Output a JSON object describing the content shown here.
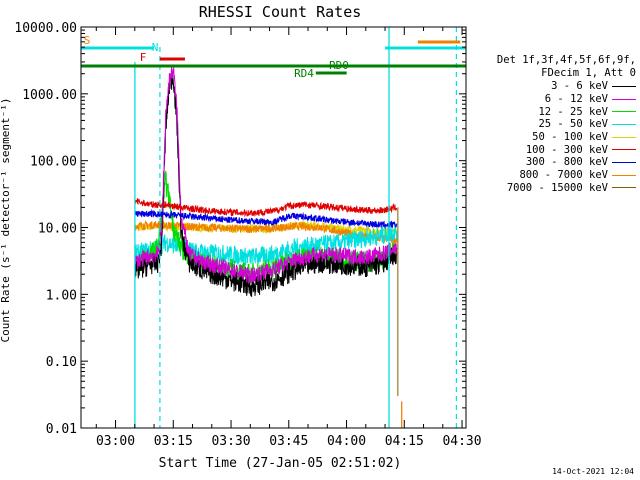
{
  "chart_data": {
    "type": "line",
    "title": "RHESSI Count Rates",
    "xlabel": "Start Time (27-Jan-05 02:51:02)",
    "ylabel": "Count Rate (s⁻¹ detector⁻¹ segment⁻¹)",
    "yscale": "log",
    "ylim": [
      0.01,
      10000
    ],
    "xlim_minutes": [
      0,
      100
    ],
    "y_ticks": [
      "0.01",
      "0.10",
      "1.00",
      "10.00",
      "100.00",
      "1000.00",
      "10000.00"
    ],
    "x_ticks": [
      {
        "label": "03:00",
        "min": 8.97
      },
      {
        "label": "03:15",
        "min": 23.97
      },
      {
        "label": "03:30",
        "min": 38.97
      },
      {
        "label": "03:45",
        "min": 53.97
      },
      {
        "label": "04:00",
        "min": 68.97
      },
      {
        "label": "04:15",
        "min": 83.97
      },
      {
        "label": "04:30",
        "min": 98.97
      }
    ],
    "data_range_minutes": [
      14,
      82
    ],
    "legend": {
      "header": [
        "Det 1f,3f,4f,5f,6f,9f,",
        "FDecim 1, Att 0"
      ],
      "placement": "right"
    },
    "series": [
      {
        "name": "3 - 6 keV",
        "color": "#000000",
        "points": [
          [
            14,
            2.2
          ],
          [
            18,
            2.8
          ],
          [
            20,
            3
          ],
          [
            21,
            6
          ],
          [
            22,
            300
          ],
          [
            23,
            1400
          ],
          [
            24,
            1900
          ],
          [
            25,
            300
          ],
          [
            26,
            8
          ],
          [
            28,
            3
          ],
          [
            32,
            2.2
          ],
          [
            38,
            1.7
          ],
          [
            44,
            1.3
          ],
          [
            50,
            1.6
          ],
          [
            56,
            2.4
          ],
          [
            62,
            3
          ],
          [
            68,
            2.8
          ],
          [
            74,
            2.6
          ],
          [
            78,
            2.8
          ],
          [
            82,
            4
          ]
        ]
      },
      {
        "name": "6 - 12 keV",
        "color": "#d400d4",
        "points": [
          [
            14,
            3
          ],
          [
            18,
            3.8
          ],
          [
            20,
            4
          ],
          [
            21,
            10
          ],
          [
            22,
            500
          ],
          [
            23,
            1700
          ],
          [
            24,
            2300
          ],
          [
            25,
            500
          ],
          [
            26,
            15
          ],
          [
            28,
            4
          ],
          [
            32,
            3
          ],
          [
            38,
            2.4
          ],
          [
            44,
            1.9
          ],
          [
            50,
            2.4
          ],
          [
            56,
            3.4
          ],
          [
            62,
            4
          ],
          [
            68,
            3.8
          ],
          [
            74,
            3.6
          ],
          [
            78,
            4
          ],
          [
            82,
            5
          ]
        ]
      },
      {
        "name": "12 - 25 keV",
        "color": "#00dd00",
        "points": [
          [
            14,
            3
          ],
          [
            18,
            4
          ],
          [
            20,
            5
          ],
          [
            21,
            15
          ],
          [
            22,
            50
          ],
          [
            23,
            25
          ],
          [
            24,
            10
          ],
          [
            26,
            5
          ],
          [
            30,
            3
          ],
          [
            38,
            2.4
          ],
          [
            44,
            2
          ],
          [
            50,
            2.5
          ],
          [
            56,
            3.4
          ],
          [
            62,
            3.7
          ],
          [
            68,
            3.4
          ],
          [
            74,
            3
          ],
          [
            78,
            3.2
          ],
          [
            82,
            5
          ]
        ]
      },
      {
        "name": "25 - 50 keV",
        "color": "#00e0e0",
        "points": [
          [
            14,
            4
          ],
          [
            18,
            4.6
          ],
          [
            20,
            5
          ],
          [
            22,
            6
          ],
          [
            24,
            5.5
          ],
          [
            28,
            4.6
          ],
          [
            32,
            4.2
          ],
          [
            38,
            4
          ],
          [
            44,
            3.6
          ],
          [
            50,
            4
          ],
          [
            56,
            5
          ],
          [
            62,
            5.5
          ],
          [
            68,
            6
          ],
          [
            74,
            7
          ],
          [
            78,
            7.5
          ],
          [
            82,
            9
          ]
        ]
      },
      {
        "name": "50 - 100 keV",
        "color": "#e0d000",
        "points": [
          [
            14,
            10
          ],
          [
            20,
            10.5
          ],
          [
            30,
            10
          ],
          [
            40,
            9.5
          ],
          [
            50,
            9.5
          ],
          [
            56,
            11
          ],
          [
            62,
            10.5
          ],
          [
            68,
            9.5
          ],
          [
            74,
            9
          ],
          [
            82,
            8.5
          ]
        ]
      },
      {
        "name": "100 - 300 keV",
        "color": "#e00000",
        "points": [
          [
            14,
            25
          ],
          [
            18,
            22
          ],
          [
            22,
            22
          ],
          [
            26,
            20
          ],
          [
            32,
            18
          ],
          [
            38,
            17
          ],
          [
            44,
            16.5
          ],
          [
            50,
            17.5
          ],
          [
            54,
            21
          ],
          [
            58,
            22
          ],
          [
            62,
            21
          ],
          [
            66,
            20
          ],
          [
            70,
            19
          ],
          [
            74,
            18
          ],
          [
            78,
            18
          ],
          [
            82,
            20
          ]
        ]
      },
      {
        "name": "300 - 800 keV",
        "color": "#0000e0",
        "points": [
          [
            14,
            16
          ],
          [
            18,
            16
          ],
          [
            22,
            15.5
          ],
          [
            26,
            15
          ],
          [
            32,
            14
          ],
          [
            38,
            13
          ],
          [
            44,
            12.5
          ],
          [
            50,
            12
          ],
          [
            54,
            15
          ],
          [
            58,
            14.5
          ],
          [
            62,
            13.5
          ],
          [
            66,
            12.5
          ],
          [
            70,
            12
          ],
          [
            74,
            11.5
          ],
          [
            78,
            11
          ],
          [
            82,
            11
          ]
        ]
      },
      {
        "name": "800 - 7000 keV",
        "color": "#f08000",
        "points": [
          [
            14,
            10.5
          ],
          [
            20,
            11
          ],
          [
            26,
            10.5
          ],
          [
            32,
            10
          ],
          [
            38,
            9.8
          ],
          [
            44,
            9.5
          ],
          [
            50,
            9.8
          ],
          [
            56,
            10.5
          ],
          [
            62,
            10
          ],
          [
            68,
            8.5
          ],
          [
            72,
            7.5
          ],
          [
            76,
            7
          ],
          [
            80,
            6.8
          ],
          [
            82,
            6.5
          ]
        ]
      },
      {
        "name": "7000 - 15000 keV",
        "color": "#806000",
        "points": []
      }
    ],
    "annotations": [
      {
        "label": "S",
        "color": "#f08000"
      },
      {
        "label": "N",
        "color": "#00e0e0"
      },
      {
        "label": "F",
        "color": "#e00000"
      },
      {
        "label": "RD0",
        "color": "#008000"
      },
      {
        "label": "RD4",
        "color": "#008000"
      }
    ]
  },
  "footer_date": "14-Oct-2021 12:04"
}
